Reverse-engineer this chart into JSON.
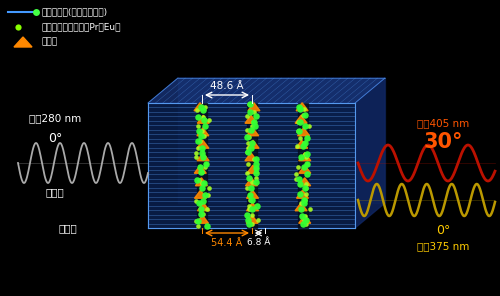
{
  "bg_color": "#000000",
  "legend": [
    {
      "label": "界面活性剤(ステアリン酸)",
      "line_color": "#4499ff",
      "dot_color": "#44ff44"
    },
    {
      "label": "希土類金属イオン（Pr、Eu）",
      "dot_color": "#88ff00"
    },
    {
      "label": "メレム",
      "tri_color": "#ff8800"
    }
  ],
  "dim_label_top": "48.6 Å",
  "dim_label_bot1": "54.4 Å",
  "dim_label_bot2": "6.8 Å",
  "left_wave_label1": "波長280 nm",
  "left_wave_label2": "0°",
  "left_wave_label3": "励起光",
  "left_wave_label4": "石英板",
  "right_top_label1": "波長405 nm",
  "right_top_label2": "30°",
  "right_bot_label1": "0°",
  "right_bot_label2": "波長375 nm",
  "wave_color_left": "#aaaaaa",
  "wave_color_red": "#bb1100",
  "wave_color_yellow": "#bb9900",
  "slab_face": "#0a2050",
  "slab_edge": "#5599ee",
  "slab_top": "#1a3a88"
}
